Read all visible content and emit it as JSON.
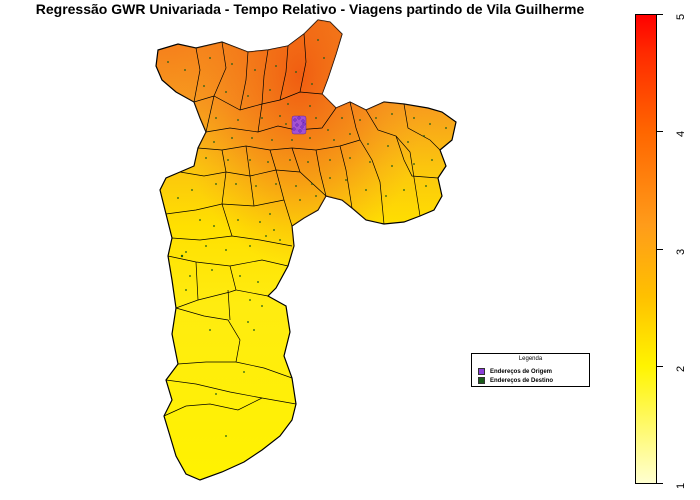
{
  "title": "Regressão GWR Univariada - Tempo Relativo - Viagens partindo de Vila Guilherme",
  "legend": {
    "title": "Legenda",
    "items": [
      {
        "label": "Endereços de Origem",
        "color": "#8B3FD9"
      },
      {
        "label": "Endereços de Destino",
        "color": "#1A5C1A"
      }
    ]
  },
  "color_scale": {
    "ticks": [
      "1",
      "2",
      "3",
      "4",
      "5"
    ],
    "min": 1,
    "max": 5,
    "colors": [
      "#FFFFD0",
      "#FFF400",
      "#FFC000",
      "#FF9C1A",
      "#FF6600",
      "#FF2A00",
      "#FF0000"
    ]
  }
}
